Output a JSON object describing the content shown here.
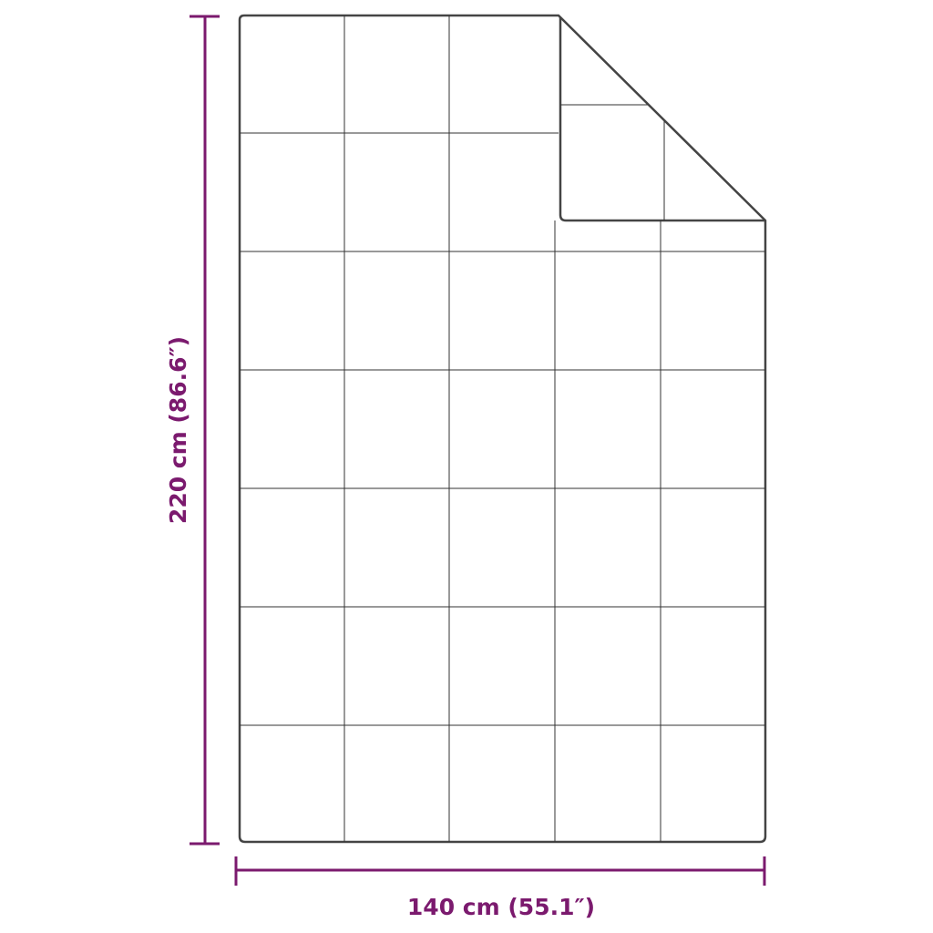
{
  "dimensions": {
    "height_label": "220 cm (86.6″)",
    "width_label": "140 cm (55.1″)"
  },
  "colors": {
    "dimension": "#7b1a6e",
    "outline": "#333333"
  }
}
